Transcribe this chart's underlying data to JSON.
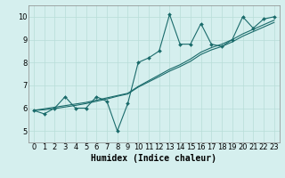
{
  "xlabel": "Humidex (Indice chaleur)",
  "ylabel": "",
  "background_color": "#d5efee",
  "grid_color": "#b8ddd8",
  "line_color": "#1a6b6b",
  "x_data": [
    0,
    1,
    2,
    3,
    4,
    5,
    6,
    7,
    8,
    9,
    10,
    11,
    12,
    13,
    14,
    15,
    16,
    17,
    18,
    19,
    20,
    21,
    22,
    23
  ],
  "y_main": [
    5.9,
    5.75,
    6.0,
    6.5,
    6.0,
    6.0,
    6.5,
    6.3,
    5.0,
    6.2,
    8.0,
    8.2,
    8.5,
    10.1,
    8.8,
    8.8,
    9.7,
    8.8,
    8.7,
    9.0,
    10.0,
    9.5,
    9.9,
    10.0
  ],
  "y_trend1": [
    5.9,
    5.97,
    6.04,
    6.11,
    6.18,
    6.25,
    6.35,
    6.45,
    6.55,
    6.65,
    6.95,
    7.2,
    7.45,
    7.7,
    7.9,
    8.15,
    8.45,
    8.65,
    8.8,
    9.0,
    9.25,
    9.45,
    9.65,
    9.85
  ],
  "y_trend2": [
    5.9,
    5.93,
    5.98,
    6.05,
    6.12,
    6.2,
    6.3,
    6.4,
    6.52,
    6.62,
    6.92,
    7.15,
    7.38,
    7.62,
    7.82,
    8.05,
    8.35,
    8.55,
    8.7,
    8.9,
    9.15,
    9.35,
    9.55,
    9.75
  ],
  "xlim": [
    -0.5,
    23.5
  ],
  "ylim": [
    4.5,
    10.5
  ],
  "yticks": [
    5,
    6,
    7,
    8,
    9,
    10
  ],
  "xticks": [
    0,
    1,
    2,
    3,
    4,
    5,
    6,
    7,
    8,
    9,
    10,
    11,
    12,
    13,
    14,
    15,
    16,
    17,
    18,
    19,
    20,
    21,
    22,
    23
  ],
  "tick_fontsize": 6,
  "xlabel_fontsize": 7
}
